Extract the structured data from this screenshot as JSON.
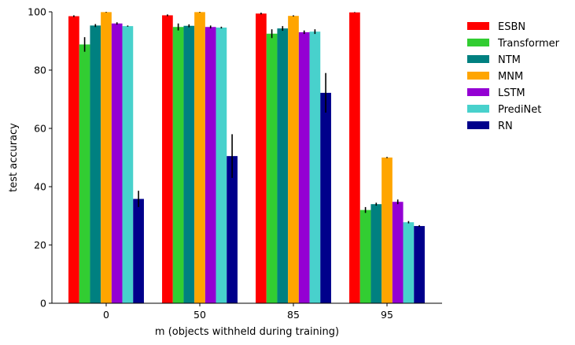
{
  "chart_data": {
    "type": "bar",
    "title": "",
    "xlabel": "m (objects withheld during training)",
    "ylabel": "test accuracy",
    "ylim": [
      0,
      100
    ],
    "yticks": [
      0,
      20,
      40,
      60,
      80,
      100
    ],
    "categories": [
      "0",
      "50",
      "85",
      "95"
    ],
    "legend_position": "outside-top-right",
    "series": [
      {
        "name": "ESBN",
        "color": "#ff0000",
        "values": [
          98.5,
          98.8,
          99.4,
          99.8
        ],
        "errors": [
          0.3,
          0.3,
          0.3,
          0.1
        ]
      },
      {
        "name": "Transformer",
        "color": "#32cd32",
        "values": [
          88.8,
          94.8,
          92.5,
          32.0
        ],
        "errors": [
          2.5,
          1.2,
          1.5,
          1.0
        ]
      },
      {
        "name": "NTM",
        "color": "#008080",
        "values": [
          95.3,
          95.2,
          94.3,
          34.0
        ],
        "errors": [
          0.5,
          0.5,
          0.8,
          0.5
        ]
      },
      {
        "name": "MNM",
        "color": "#ffa500",
        "values": [
          99.9,
          99.9,
          98.6,
          50.0
        ],
        "errors": [
          0.1,
          0.1,
          0.2,
          0.2
        ]
      },
      {
        "name": "LSTM",
        "color": "#9400d3",
        "values": [
          96.0,
          94.8,
          93.0,
          34.8
        ],
        "errors": [
          0.4,
          0.5,
          0.6,
          0.8
        ]
      },
      {
        "name": "PrediNet",
        "color": "#48d1cc",
        "values": [
          95.1,
          94.6,
          93.2,
          27.8
        ],
        "errors": [
          0.2,
          0.3,
          0.8,
          0.4
        ]
      },
      {
        "name": "RN",
        "color": "#00008b",
        "values": [
          35.8,
          50.5,
          72.2,
          26.5
        ],
        "errors": [
          2.8,
          7.5,
          6.8,
          0.3
        ]
      }
    ]
  }
}
